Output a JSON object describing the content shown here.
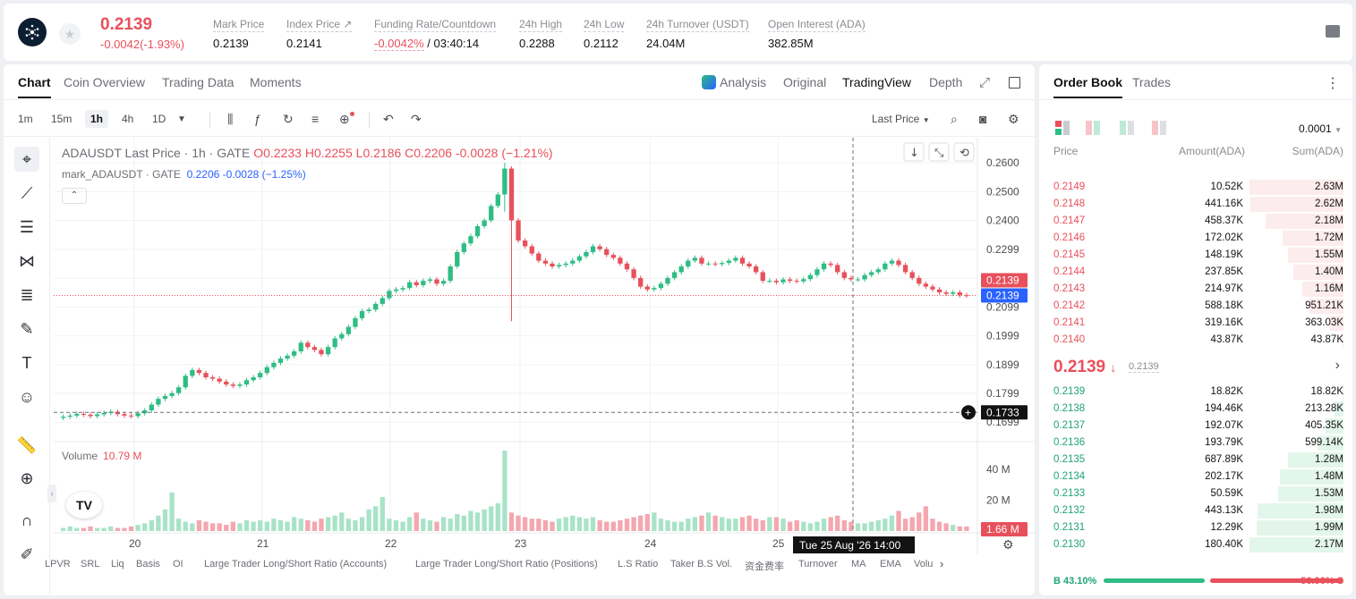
{
  "ticker": {
    "last_price": "0.2139",
    "change": "-0.0042(-1.93%)",
    "stats": [
      {
        "label": "Mark Price",
        "value": "0.2139"
      },
      {
        "label": "Index Price ↗",
        "value": "0.2141"
      },
      {
        "label": "Funding Rate/Countdown",
        "value_neg": "-0.0042%",
        "value": "/ 03:40:14"
      },
      {
        "label": "24h High",
        "value": "0.2288"
      },
      {
        "label": "24h Low",
        "value": "0.2112"
      },
      {
        "label": "24h Turnover (USDT)",
        "value": "24.04M"
      },
      {
        "label": "Open Interest (ADA)",
        "value": "382.85M"
      }
    ]
  },
  "chart_tabs": [
    "Chart",
    "Coin Overview",
    "Trading Data",
    "Moments"
  ],
  "view_tabs": [
    "Analysis",
    "Original",
    "TradingView",
    "Depth"
  ],
  "timeframes": [
    "1m",
    "15m",
    "1h",
    "4h",
    "1D"
  ],
  "active_timeframe": "1h",
  "price_type": "Last Price",
  "legend": {
    "title": "ADAUSDT Last Price · 1h · GATE",
    "o": "O0.2233",
    "h": "H0.2255",
    "l": "L0.2186",
    "c": "C0.2206",
    "chg": "-0.0028 (−1.21%)",
    "mark_label": "mark_ADAUSDT · GATE",
    "mark_vals": "0.2206  -0.0028  (−1.25%)",
    "volume_label": "Volume",
    "volume_value": "10.79 M"
  },
  "chart_data": {
    "type": "candlestick",
    "x_ticks": [
      "20",
      "21",
      "22",
      "23",
      "24",
      "25"
    ],
    "y_ticks": [
      "0.2600",
      "0.2500",
      "0.2400",
      "0.2299",
      "0.2199",
      "0.2099",
      "0.1999",
      "0.1899",
      "0.1799",
      "0.1699"
    ],
    "ylim": [
      0.165,
      0.265
    ],
    "last_price_label": "0.2139",
    "mark_price_label": "0.2139",
    "crosshair_price": "0.1733",
    "crosshair_time": "Tue 25 Aug '26   14:00",
    "volume_ticks": [
      "40 M",
      "20 M"
    ],
    "volume_last": "1.66 M",
    "closes": [
      0.1718,
      0.1722,
      0.1728,
      0.1725,
      0.172,
      0.1726,
      0.1731,
      0.1735,
      0.1727,
      0.1722,
      0.172,
      0.173,
      0.174,
      0.176,
      0.178,
      0.179,
      0.18,
      0.182,
      0.186,
      0.188,
      0.187,
      0.1855,
      0.185,
      0.184,
      0.183,
      0.1825,
      0.183,
      0.1845,
      0.1855,
      0.187,
      0.189,
      0.1905,
      0.192,
      0.193,
      0.1945,
      0.1975,
      0.196,
      0.195,
      0.1935,
      0.196,
      0.199,
      0.2005,
      0.203,
      0.206,
      0.2085,
      0.209,
      0.211,
      0.213,
      0.2155,
      0.216,
      0.2165,
      0.2185,
      0.2175,
      0.219,
      0.2195,
      0.218,
      0.219,
      0.224,
      0.229,
      0.232,
      0.2345,
      0.238,
      0.24,
      0.245,
      0.249,
      0.258,
      0.24,
      0.233,
      0.231,
      0.2285,
      0.226,
      0.225,
      0.224,
      0.2245,
      0.225,
      0.226,
      0.2275,
      0.229,
      0.231,
      0.23,
      0.228,
      0.227,
      0.225,
      0.223,
      0.22,
      0.217,
      0.216,
      0.2165,
      0.218,
      0.22,
      0.222,
      0.224,
      0.226,
      0.227,
      0.225,
      0.225,
      0.2248,
      0.2252,
      0.226,
      0.227,
      0.225,
      0.224,
      0.222,
      0.219,
      0.219,
      0.2185,
      0.2195,
      0.219,
      0.2188,
      0.2196,
      0.221,
      0.223,
      0.225,
      0.2245,
      0.222,
      0.22,
      0.2195,
      0.2195,
      0.221,
      0.222,
      0.223,
      0.225,
      0.226,
      0.2245,
      0.222,
      0.22,
      0.218,
      0.217,
      0.216,
      0.215,
      0.2145,
      0.215,
      0.214,
      0.2139
    ],
    "volumes": [
      2,
      3,
      2,
      2,
      3,
      2,
      2,
      3,
      2,
      2,
      3,
      4,
      5,
      7,
      10,
      14,
      25,
      8,
      6,
      5,
      7,
      6,
      5,
      5,
      4,
      6,
      5,
      7,
      6,
      7,
      6,
      8,
      7,
      6,
      9,
      8,
      7,
      6,
      8,
      9,
      10,
      12,
      8,
      7,
      9,
      14,
      16,
      22,
      8,
      7,
      6,
      9,
      12,
      8,
      7,
      6,
      9,
      8,
      11,
      10,
      13,
      12,
      14,
      16,
      18,
      52,
      12,
      10,
      9,
      8,
      8,
      7,
      6,
      8,
      9,
      10,
      9,
      8,
      9,
      7,
      6,
      6,
      7,
      8,
      9,
      10,
      11,
      12,
      8,
      7,
      6,
      6,
      8,
      9,
      10,
      12,
      10,
      9,
      8,
      8,
      9,
      10,
      8,
      7,
      9,
      9,
      8,
      6,
      7,
      6,
      5,
      6,
      8,
      9,
      10,
      7,
      6,
      5,
      5,
      6,
      7,
      8,
      10,
      13,
      8,
      9,
      12,
      16,
      8,
      6,
      5,
      4,
      3,
      3
    ]
  },
  "indicators": [
    "LPVR",
    "SRL",
    "Liq",
    "Basis",
    "OI",
    "Large Trader Long/Short Ratio (Accounts)",
    "Large Trader Long/Short Ratio (Positions)",
    "L.S Ratio",
    "Taker B.S Vol.",
    "资金费率",
    "Turnover",
    "MA",
    "EMA",
    "Volu"
  ],
  "orderbook": {
    "tabs": [
      "Order Book",
      "Trades"
    ],
    "precision": "0.0001",
    "headers": [
      "Price",
      "Amount(ADA)",
      "Sum(ADA)"
    ],
    "asks": [
      {
        "price": "0.2149",
        "amount": "10.52K",
        "sum": "2.63M",
        "depth": 1.0
      },
      {
        "price": "0.2148",
        "amount": "441.16K",
        "sum": "2.62M",
        "depth": 0.99
      },
      {
        "price": "0.2147",
        "amount": "458.37K",
        "sum": "2.18M",
        "depth": 0.83
      },
      {
        "price": "0.2146",
        "amount": "172.02K",
        "sum": "1.72M",
        "depth": 0.65
      },
      {
        "price": "0.2145",
        "amount": "148.19K",
        "sum": "1.55M",
        "depth": 0.59
      },
      {
        "price": "0.2144",
        "amount": "237.85K",
        "sum": "1.40M",
        "depth": 0.53
      },
      {
        "price": "0.2143",
        "amount": "214.97K",
        "sum": "1.16M",
        "depth": 0.44
      },
      {
        "price": "0.2142",
        "amount": "588.18K",
        "sum": "951.21K",
        "depth": 0.36
      },
      {
        "price": "0.2141",
        "amount": "319.16K",
        "sum": "363.03K",
        "depth": 0.14
      },
      {
        "price": "0.2140",
        "amount": "43.87K",
        "sum": "43.87K",
        "depth": 0.02
      }
    ],
    "mid_price": "0.2139",
    "mid_arrow": "↓",
    "mark_price": "0.2139",
    "bids": [
      {
        "price": "0.2139",
        "amount": "18.82K",
        "sum": "18.82K",
        "depth": 0.01
      },
      {
        "price": "0.2138",
        "amount": "194.46K",
        "sum": "213.28K",
        "depth": 0.1
      },
      {
        "price": "0.2137",
        "amount": "192.07K",
        "sum": "405.35K",
        "depth": 0.19
      },
      {
        "price": "0.2136",
        "amount": "193.79K",
        "sum": "599.14K",
        "depth": 0.28
      },
      {
        "price": "0.2135",
        "amount": "687.89K",
        "sum": "1.28M",
        "depth": 0.59
      },
      {
        "price": "0.2134",
        "amount": "202.17K",
        "sum": "1.48M",
        "depth": 0.68
      },
      {
        "price": "0.2133",
        "amount": "50.59K",
        "sum": "1.53M",
        "depth": 0.7
      },
      {
        "price": "0.2132",
        "amount": "443.13K",
        "sum": "1.98M",
        "depth": 0.91
      },
      {
        "price": "0.2131",
        "amount": "12.29K",
        "sum": "1.99M",
        "depth": 0.92
      },
      {
        "price": "0.2130",
        "amount": "180.40K",
        "sum": "2.17M",
        "depth": 1.0
      }
    ],
    "buy_ratio": "B 43.10%",
    "sell_ratio": "56.90% S",
    "buy_fraction": 0.431
  },
  "colors": {
    "up": "#2ebd85",
    "down": "#e8505b",
    "accent": "#2962ff"
  }
}
